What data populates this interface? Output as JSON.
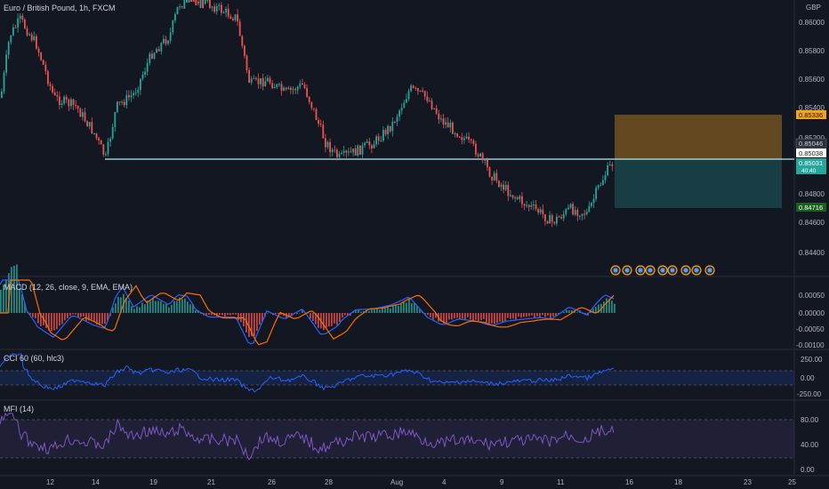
{
  "header": {
    "symbol": "Euro / British Pound, 1h, FXCM"
  },
  "currency": "GBP",
  "price_axis": [
    "0.86000",
    "0.85800",
    "0.85600",
    "0.85400",
    "0.85200",
    "0.84800",
    "0.84600",
    "0.84400"
  ],
  "price_tags": {
    "target": "0.85336",
    "p1": "0.85046",
    "p2": "0.85038",
    "p3": "0.85031",
    "p3_sub": "40:40",
    "stop": "0.84716"
  },
  "macd": {
    "title": "MACD (12, 26, close, 9, EMA, EMA)",
    "axis": [
      "0.00050",
      "0.00000",
      "-0.00050",
      "-0.00100"
    ]
  },
  "cci": {
    "title": "CCI 60 (60, hlc3)",
    "axis": [
      "250.00",
      "0.00",
      "-250.00"
    ]
  },
  "mfi": {
    "title": "MFI (14)",
    "axis": [
      "80.00",
      "40.00",
      "0.00"
    ]
  },
  "time_axis": [
    "12",
    "14",
    "19",
    "21",
    "26",
    "28",
    "Aug",
    "4",
    "9",
    "11",
    "16",
    "18",
    "23",
    "25"
  ],
  "colors": {
    "background": "#131722",
    "up": "#26a69a",
    "down": "#ef5350",
    "level_line": "#b2ebf2",
    "target_zone": "#f7a21b",
    "stop_zone": "#26a69a",
    "macd_line": "#2962ff",
    "signal_line": "#ff6d00",
    "cci_line": "#2962ff",
    "mfi_line": "#7e57c2"
  },
  "event_icons": [
    "event-icon",
    "event-icon",
    "event-icon",
    "event-icon",
    "event-icon",
    "event-icon",
    "event-icon",
    "event-icon",
    "event-icon"
  ]
}
